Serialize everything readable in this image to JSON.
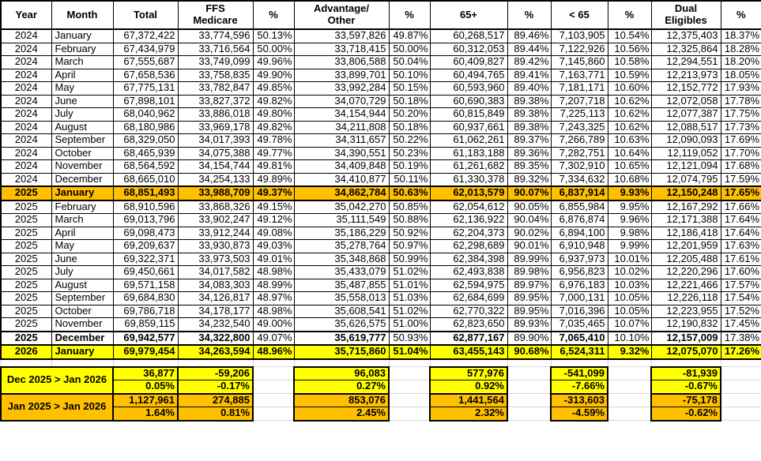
{
  "colors": {
    "highlight_orange": "#FFC000",
    "highlight_yellow": "#FFFF00",
    "gridline_gray": "#D6D6D6",
    "table_border": "#000000"
  },
  "table": {
    "headers": [
      "Year",
      "Month",
      "Total",
      "FFS\nMedicare",
      "%",
      "Advantage/\nOther",
      "%",
      "65+",
      "%",
      "< 65",
      "%",
      "Dual\nEligibles",
      "%"
    ],
    "rows": [
      {
        "style": "normal",
        "cells": [
          "2024",
          "January",
          "67,372,422",
          "33,774,596",
          "50.13%",
          "33,597,826",
          "49.87%",
          "60,268,517",
          "89.46%",
          "7,103,905",
          "10.54%",
          "12,375,403",
          "18.37%"
        ]
      },
      {
        "style": "normal",
        "cells": [
          "2024",
          "February",
          "67,434,979",
          "33,716,564",
          "50.00%",
          "33,718,415",
          "50.00%",
          "60,312,053",
          "89.44%",
          "7,122,926",
          "10.56%",
          "12,325,864",
          "18.28%"
        ]
      },
      {
        "style": "normal",
        "cells": [
          "2024",
          "March",
          "67,555,687",
          "33,749,099",
          "49.96%",
          "33,806,588",
          "50.04%",
          "60,409,827",
          "89.42%",
          "7,145,860",
          "10.58%",
          "12,294,551",
          "18.20%"
        ]
      },
      {
        "style": "normal",
        "cells": [
          "2024",
          "April",
          "67,658,536",
          "33,758,835",
          "49.90%",
          "33,899,701",
          "50.10%",
          "60,494,765",
          "89.41%",
          "7,163,771",
          "10.59%",
          "12,213,973",
          "18.05%"
        ]
      },
      {
        "style": "normal",
        "cells": [
          "2024",
          "May",
          "67,775,131",
          "33,782,847",
          "49.85%",
          "33,992,284",
          "50.15%",
          "60,593,960",
          "89.40%",
          "7,181,171",
          "10.60%",
          "12,152,772",
          "17.93%"
        ]
      },
      {
        "style": "normal",
        "cells": [
          "2024",
          "June",
          "67,898,101",
          "33,827,372",
          "49.82%",
          "34,070,729",
          "50.18%",
          "60,690,383",
          "89.38%",
          "7,207,718",
          "10.62%",
          "12,072,058",
          "17.78%"
        ]
      },
      {
        "style": "normal",
        "cells": [
          "2024",
          "July",
          "68,040,962",
          "33,886,018",
          "49.80%",
          "34,154,944",
          "50.20%",
          "60,815,849",
          "89.38%",
          "7,225,113",
          "10.62%",
          "12,077,387",
          "17.75%"
        ]
      },
      {
        "style": "normal",
        "cells": [
          "2024",
          "August",
          "68,180,986",
          "33,969,178",
          "49.82%",
          "34,211,808",
          "50.18%",
          "60,937,661",
          "89.38%",
          "7,243,325",
          "10.62%",
          "12,088,517",
          "17.73%"
        ]
      },
      {
        "style": "normal",
        "cells": [
          "2024",
          "September",
          "68,329,050",
          "34,017,393",
          "49.78%",
          "34,311,657",
          "50.22%",
          "61,062,261",
          "89.37%",
          "7,266,789",
          "10.63%",
          "12,090,093",
          "17.69%"
        ]
      },
      {
        "style": "normal",
        "cells": [
          "2024",
          "October",
          "68,465,939",
          "34,075,388",
          "49.77%",
          "34,390,551",
          "50.23%",
          "61,183,188",
          "89.36%",
          "7,282,751",
          "10.64%",
          "12,119,052",
          "17.70%"
        ]
      },
      {
        "style": "normal",
        "cells": [
          "2024",
          "November",
          "68,564,592",
          "34,154,744",
          "49.81%",
          "34,409,848",
          "50.19%",
          "61,261,682",
          "89.35%",
          "7,302,910",
          "10.65%",
          "12,121,094",
          "17.68%"
        ]
      },
      {
        "style": "normal",
        "cells": [
          "2024",
          "December",
          "68,665,010",
          "34,254,133",
          "49.89%",
          "34,410,877",
          "50.11%",
          "61,330,378",
          "89.32%",
          "7,334,632",
          "10.68%",
          "12,074,795",
          "17.59%"
        ]
      },
      {
        "style": "orange",
        "cells": [
          "2025",
          "January",
          "68,851,493",
          "33,988,709",
          "49.37%",
          "34,862,784",
          "50.63%",
          "62,013,579",
          "90.07%",
          "6,837,914",
          "9.93%",
          "12,150,248",
          "17.65%"
        ]
      },
      {
        "style": "normal",
        "cells": [
          "2025",
          "February",
          "68,910,596",
          "33,868,326",
          "49.15%",
          "35,042,270",
          "50.85%",
          "62,054,612",
          "90.05%",
          "6,855,984",
          "9.95%",
          "12,167,292",
          "17.66%"
        ]
      },
      {
        "style": "normal",
        "cells": [
          "2025",
          "March",
          "69,013,796",
          "33,902,247",
          "49.12%",
          "35,111,549",
          "50.88%",
          "62,136,922",
          "90.04%",
          "6,876,874",
          "9.96%",
          "12,171,388",
          "17.64%"
        ]
      },
      {
        "style": "normal",
        "cells": [
          "2025",
          "April",
          "69,098,473",
          "33,912,244",
          "49.08%",
          "35,186,229",
          "50.92%",
          "62,204,373",
          "90.02%",
          "6,894,100",
          "9.98%",
          "12,186,418",
          "17.64%"
        ]
      },
      {
        "style": "normal",
        "cells": [
          "2025",
          "May",
          "69,209,637",
          "33,930,873",
          "49.03%",
          "35,278,764",
          "50.97%",
          "62,298,689",
          "90.01%",
          "6,910,948",
          "9.99%",
          "12,201,959",
          "17.63%"
        ]
      },
      {
        "style": "normal",
        "cells": [
          "2025",
          "June",
          "69,322,371",
          "33,973,503",
          "49.01%",
          "35,348,868",
          "50.99%",
          "62,384,398",
          "89.99%",
          "6,937,973",
          "10.01%",
          "12,205,488",
          "17.61%"
        ]
      },
      {
        "style": "normal",
        "cells": [
          "2025",
          "July",
          "69,450,661",
          "34,017,582",
          "48.98%",
          "35,433,079",
          "51.02%",
          "62,493,838",
          "89.98%",
          "6,956,823",
          "10.02%",
          "12,220,296",
          "17.60%"
        ]
      },
      {
        "style": "normal",
        "cells": [
          "2025",
          "August",
          "69,571,158",
          "34,083,303",
          "48.99%",
          "35,487,855",
          "51.01%",
          "62,594,975",
          "89.97%",
          "6,976,183",
          "10.03%",
          "12,221,466",
          "17.57%"
        ]
      },
      {
        "style": "normal",
        "cells": [
          "2025",
          "September",
          "69,684,830",
          "34,126,817",
          "48.97%",
          "35,558,013",
          "51.03%",
          "62,684,699",
          "89.95%",
          "7,000,131",
          "10.05%",
          "12,226,118",
          "17.54%"
        ]
      },
      {
        "style": "normal",
        "cells": [
          "2025",
          "October",
          "69,786,718",
          "34,178,177",
          "48.98%",
          "35,608,541",
          "51.02%",
          "62,770,322",
          "89.95%",
          "7,016,396",
          "10.05%",
          "12,223,955",
          "17.52%"
        ]
      },
      {
        "style": "normal",
        "cells": [
          "2025",
          "November",
          "69,859,115",
          "34,232,540",
          "49.00%",
          "35,626,575",
          "51.00%",
          "62,823,650",
          "89.93%",
          "7,035,465",
          "10.07%",
          "12,190,832",
          "17.45%"
        ]
      },
      {
        "style": "bold",
        "cells": [
          "2025",
          "December",
          "69,942,577",
          "34,322,800",
          "49.07%",
          "35,619,777",
          "50.93%",
          "62,877,167",
          "89.90%",
          "7,065,410",
          "10.10%",
          "12,157,009",
          "17.38%"
        ]
      },
      {
        "style": "yellow",
        "cells": [
          "2026",
          "January",
          "69,979,454",
          "34,263,594",
          "48.96%",
          "35,715,860",
          "51.04%",
          "63,455,143",
          "90.68%",
          "6,524,311",
          "9.32%",
          "12,075,070",
          "17.26%"
        ]
      }
    ]
  },
  "summary": {
    "blocks": [
      {
        "label": "Dec 2025 > Jan 2026",
        "style": "yellow",
        "values": [
          "36,877",
          "-59,206",
          "96,083",
          "577,976",
          "-541,099",
          "-81,939"
        ],
        "pcts": [
          "0.05%",
          "-0.17%",
          "0.27%",
          "0.92%",
          "-7.66%",
          "-0.67%"
        ]
      },
      {
        "label": "Jan 2025 > Jan 2026",
        "style": "orange",
        "values": [
          "1,127,961",
          "274,885",
          "853,076",
          "1,441,564",
          "-313,603",
          "-75,178"
        ],
        "pcts": [
          "1.64%",
          "0.81%",
          "2.45%",
          "2.32%",
          "-4.59%",
          "-0.62%"
        ]
      }
    ]
  }
}
